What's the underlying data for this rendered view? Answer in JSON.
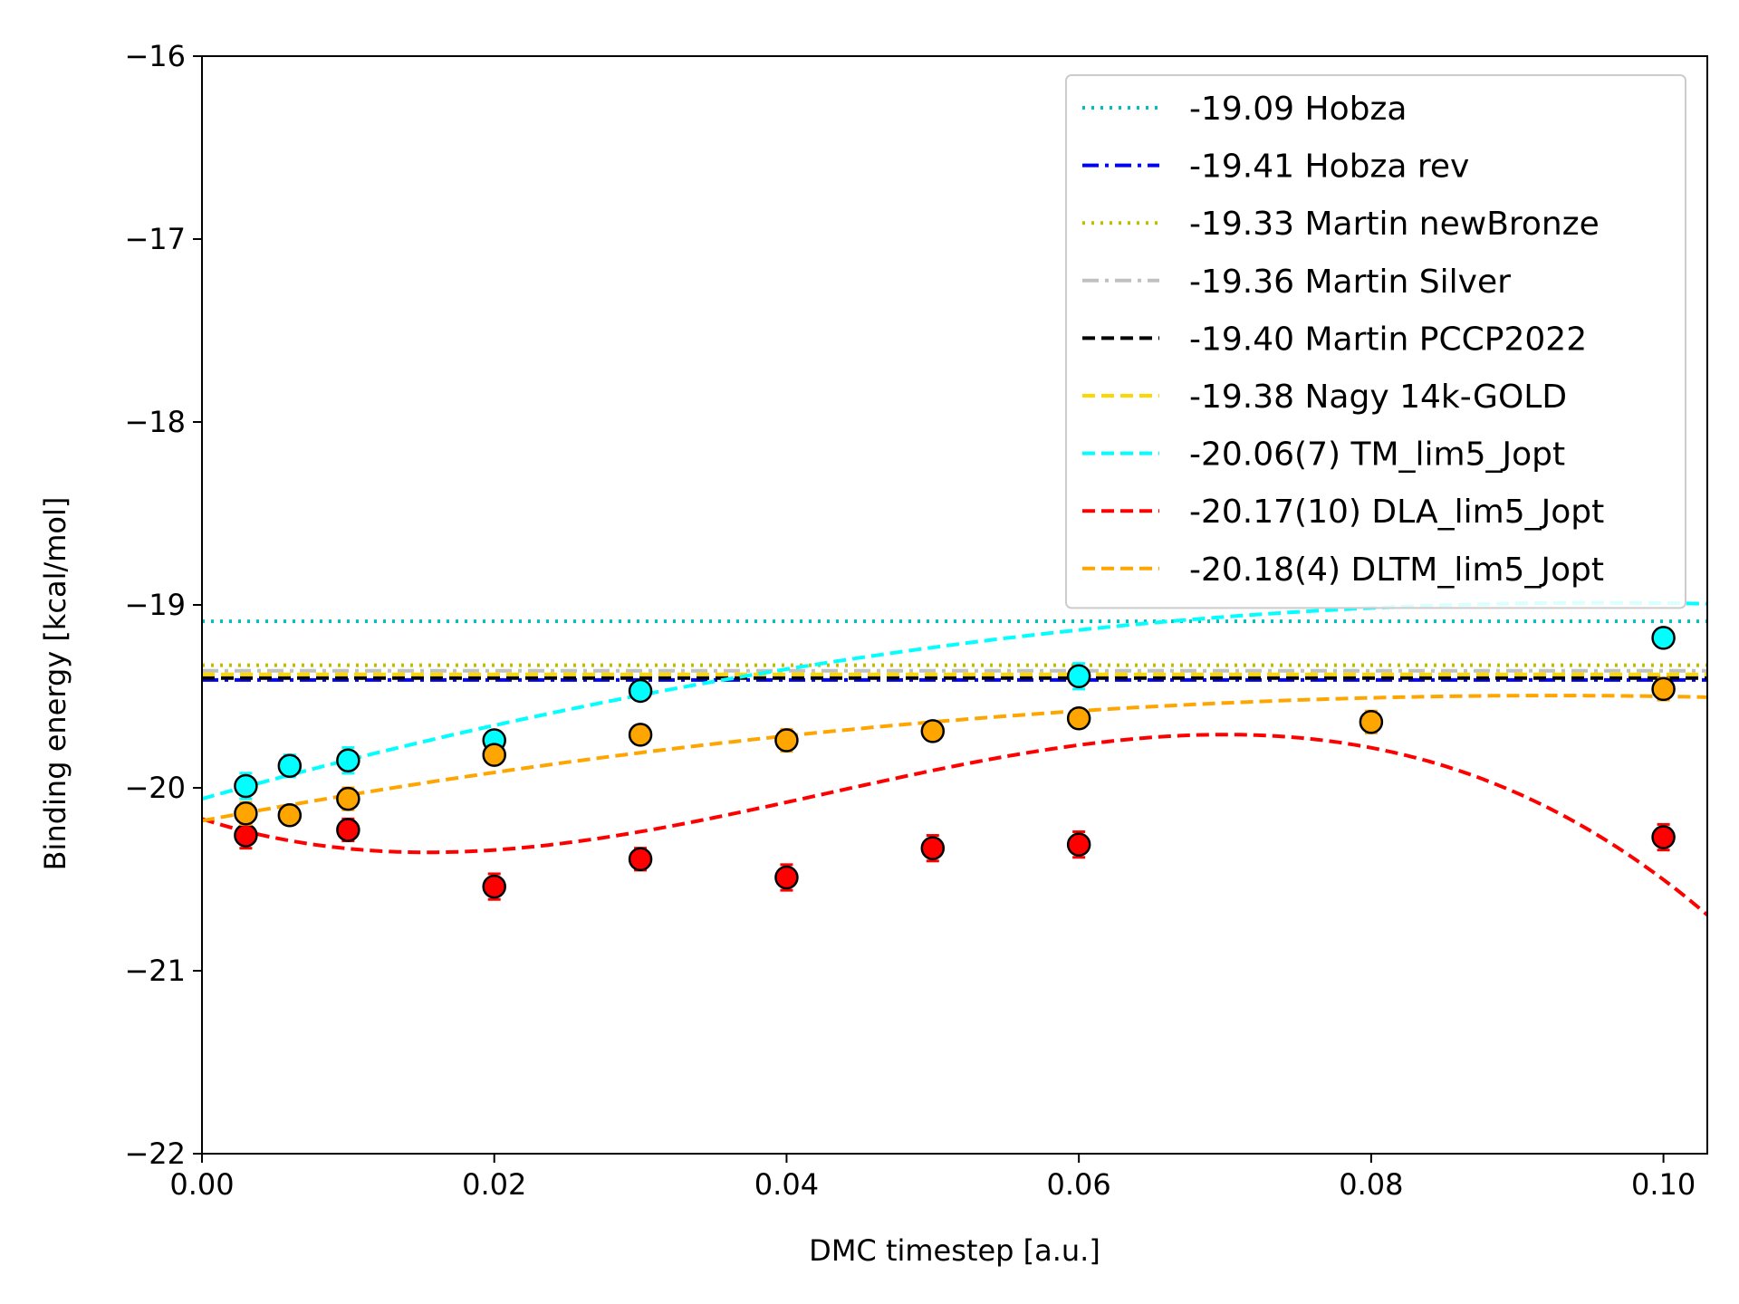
{
  "chart_data": {
    "type": "scatter",
    "title": "",
    "xlabel": "DMC timestep [a.u.]",
    "ylabel": "Binding energy [kcal/mol]",
    "xlim": [
      0.0,
      0.103
    ],
    "ylim": [
      -22,
      -16
    ],
    "x_ticks": [
      0.0,
      0.02,
      0.04,
      0.06,
      0.08,
      0.1
    ],
    "x_tick_labels": [
      "0.00",
      "0.02",
      "0.04",
      "0.06",
      "0.08",
      "0.10"
    ],
    "y_ticks": [
      -22,
      -21,
      -20,
      -19,
      -18,
      -17,
      -16
    ],
    "y_tick_labels": [
      "−22",
      "−21",
      "−20",
      "−19",
      "−18",
      "−17",
      "−16"
    ],
    "grid": false,
    "legend_position": "top-right",
    "reference_lines": [
      {
        "name": "-19.09 Hobza",
        "value": -19.09,
        "color": "#00bfbf",
        "style": "dotted"
      },
      {
        "name": "-19.41 Hobza rev",
        "value": -19.41,
        "color": "#0000ff",
        "style": "dashdot"
      },
      {
        "name": "-19.33 Martin newBronze",
        "value": -19.33,
        "color": "#bfbf00",
        "style": "dotted"
      },
      {
        "name": "-19.36 Martin Silver",
        "value": -19.36,
        "color": "#c0c0c0",
        "style": "dashdot"
      },
      {
        "name": "-19.40 Martin PCCP2022",
        "value": -19.4,
        "color": "#000000",
        "style": "dashed"
      },
      {
        "name": "-19.38 Nagy 14k-GOLD",
        "value": -19.38,
        "color": "#ffd700",
        "style": "dashed"
      }
    ],
    "series": [
      {
        "name": "-20.06(7) TM_lim5_Jopt",
        "color": "#00ffff",
        "x": [
          0.003,
          0.006,
          0.01,
          0.02,
          0.03,
          0.06,
          0.1
        ],
        "y": [
          -19.99,
          -19.88,
          -19.85,
          -19.74,
          -19.47,
          -19.39,
          -19.18
        ],
        "err": [
          0.07,
          0.06,
          0.07,
          0.05,
          0.05,
          0.07,
          0.05
        ],
        "fit": {
          "a": -20.06,
          "b": 22.4,
          "c": -117.0
        }
      },
      {
        "name": "-20.17(10) DLA_lim5_Jopt",
        "color": "#ff0000",
        "x": [
          0.003,
          0.01,
          0.02,
          0.03,
          0.04,
          0.05,
          0.06,
          0.1
        ],
        "y": [
          -20.26,
          -20.23,
          -20.54,
          -20.39,
          -20.49,
          -20.33,
          -20.31,
          -20.27
        ],
        "err": [
          0.07,
          0.06,
          0.07,
          0.06,
          0.07,
          0.07,
          0.07,
          0.07
        ],
        "fit": {
          "a": -20.17,
          "b": -25.58,
          "c": 1012.4,
          "d": -7898.0
        }
      },
      {
        "name": "-20.18(4) DLTM_lim5_Jopt",
        "color": "#ffa500",
        "x": [
          0.003,
          0.006,
          0.01,
          0.02,
          0.03,
          0.04,
          0.05,
          0.06,
          0.08,
          0.1
        ],
        "y": [
          -20.14,
          -20.15,
          -20.06,
          -19.82,
          -19.71,
          -19.74,
          -19.69,
          -19.62,
          -19.64,
          -19.46
        ],
        "err": [
          0.06,
          0.05,
          0.06,
          0.05,
          0.05,
          0.06,
          0.05,
          0.05,
          0.06,
          0.06
        ],
        "fit": {
          "a": -20.18,
          "b": 14.8,
          "c": -80.0
        }
      }
    ]
  }
}
